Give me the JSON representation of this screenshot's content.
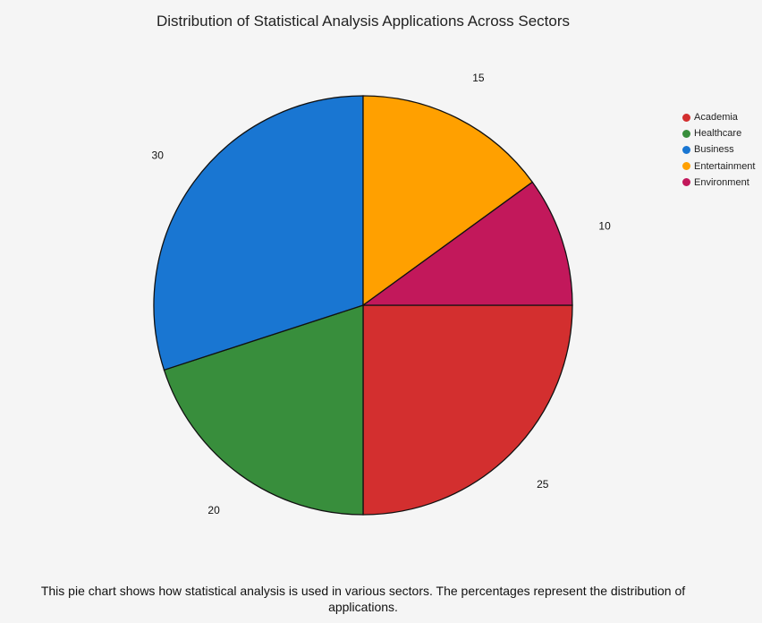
{
  "chart_data": {
    "type": "pie",
    "title": "Distribution of Statistical Analysis Applications Across Sectors",
    "categories": [
      "Academia",
      "Healthcare",
      "Business",
      "Entertainment",
      "Environment"
    ],
    "values": [
      25,
      20,
      30,
      15,
      10
    ],
    "colors": [
      "#d32f2f",
      "#388e3c",
      "#1976d2",
      "#ffa000",
      "#c2185b"
    ],
    "legend_position": "top-right",
    "label_style": "values outside slices"
  },
  "caption": "This pie chart shows how statistical analysis is used in various sectors. The percentages represent the distribution of applications."
}
